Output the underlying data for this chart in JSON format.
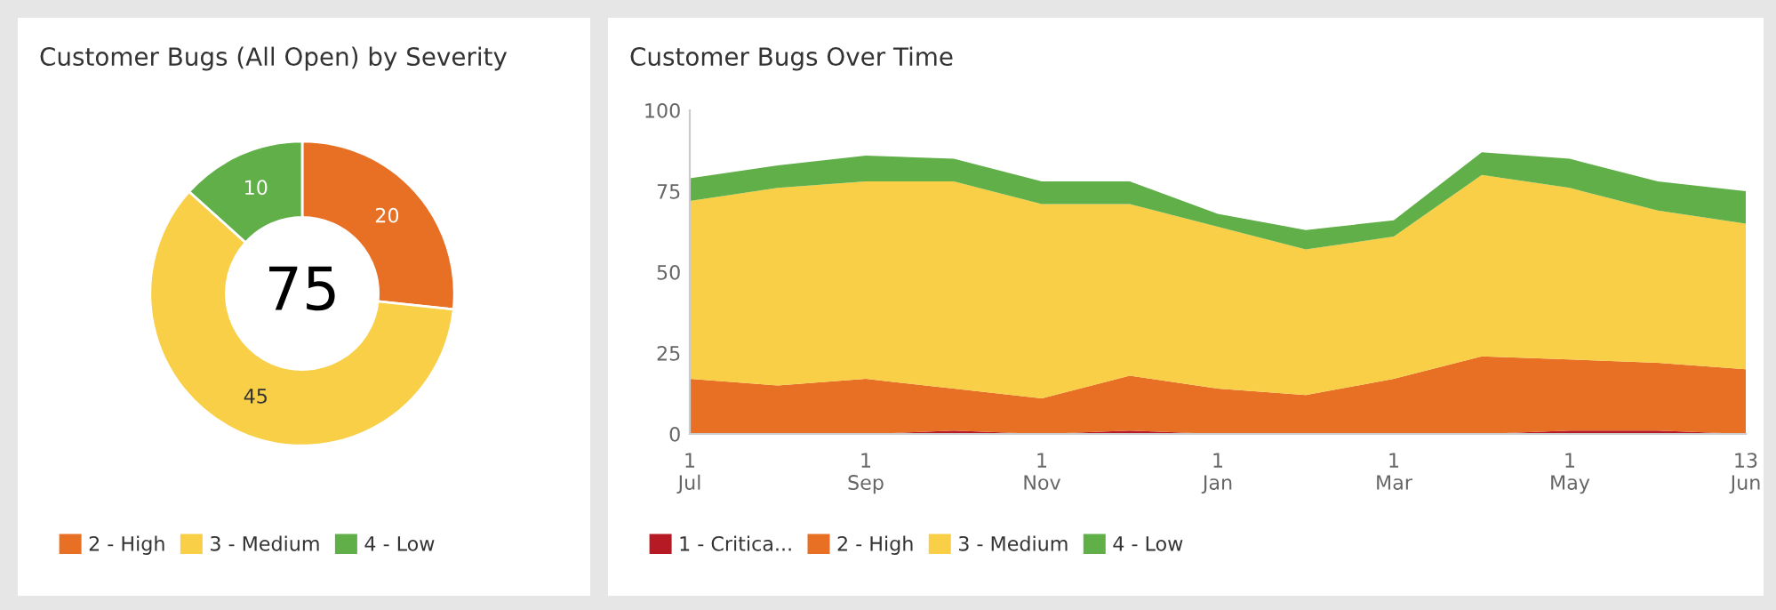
{
  "chart_data": [
    {
      "type": "donut",
      "title": "Customer Bugs (All Open) by Severity",
      "categories": [
        "2 - High",
        "3 - Medium",
        "4 - Low"
      ],
      "values": [
        20,
        45,
        10
      ],
      "colors": [
        "#e87025",
        "#f8cf46",
        "#60af49"
      ],
      "data_labels": true,
      "annotations": [
        "75"
      ],
      "legend": "bottom"
    },
    {
      "type": "area",
      "title": "Customer Bugs Over Time",
      "stacked": true,
      "categories": [
        "1\nJul",
        null,
        "1\nSep",
        null,
        "1\nNov",
        null,
        "1\nJan",
        null,
        "1\nMar",
        null,
        "1\nMay",
        null,
        "13\nJun"
      ],
      "series": [
        {
          "name": "1 - Critica...",
          "color": "#b51a25",
          "values": [
            0,
            0,
            0,
            1,
            0,
            1,
            0,
            0,
            0,
            0,
            1,
            1,
            0
          ]
        },
        {
          "name": "2 - High",
          "color": "#e87025",
          "values": [
            17,
            15,
            17,
            13,
            11,
            17,
            14,
            12,
            17,
            24,
            22,
            21,
            20
          ]
        },
        {
          "name": "3 - Medium",
          "color": "#f8cf46",
          "values": [
            55,
            61,
            61,
            64,
            60,
            53,
            50,
            45,
            44,
            56,
            53,
            47,
            45
          ]
        },
        {
          "name": "4 - Low",
          "color": "#60af49",
          "values": [
            7,
            7,
            8,
            7,
            7,
            7,
            4,
            6,
            5,
            7,
            9,
            9,
            10
          ]
        }
      ],
      "ylim": [
        0,
        100
      ],
      "yticks": [
        0,
        25,
        50,
        75,
        100
      ],
      "grid": false,
      "legend": "bottom"
    }
  ]
}
